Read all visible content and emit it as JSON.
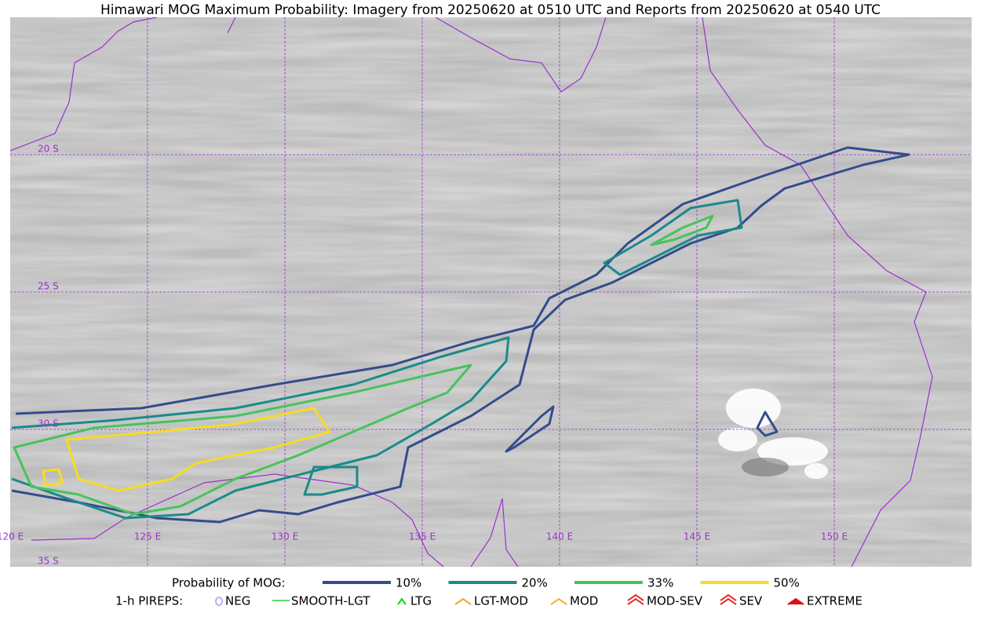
{
  "title": "Himawari MOG Maximum Probability: Imagery from 20250620 at 0510 UTC and Reports from 20250620 at 0540 UTC",
  "map": {
    "lat_labels": [
      "20 S",
      "25 S",
      "30 S",
      "35 S"
    ],
    "lon_labels": [
      "120 E",
      "125 E",
      "130 E",
      "135 E",
      "140 E",
      "145 E",
      "150 E"
    ]
  },
  "legend": {
    "probability": {
      "label": "Probability of MOG:",
      "items": [
        {
          "label": "10%",
          "color": "#344c8c"
        },
        {
          "label": "20%",
          "color": "#1b8a8a"
        },
        {
          "label": "33%",
          "color": "#47c35b"
        },
        {
          "label": "50%",
          "color": "#f6dc22"
        }
      ]
    },
    "pireps": {
      "label": "1-h PIREPS:",
      "items": [
        {
          "label": "NEG",
          "color": "#b0b4f0"
        },
        {
          "label": "SMOOTH-LGT",
          "color": "#33cc33"
        },
        {
          "label": "LTG",
          "color": "#00dd00"
        },
        {
          "label": "LGT-MOD",
          "color": "#f5a623"
        },
        {
          "label": "MOD",
          "color": "#f5b030"
        },
        {
          "label": "MOD-SEV",
          "color": "#e03030"
        },
        {
          "label": "SEV",
          "color": "#e03030"
        },
        {
          "label": "EXTREME",
          "color": "#e01010"
        }
      ]
    }
  }
}
